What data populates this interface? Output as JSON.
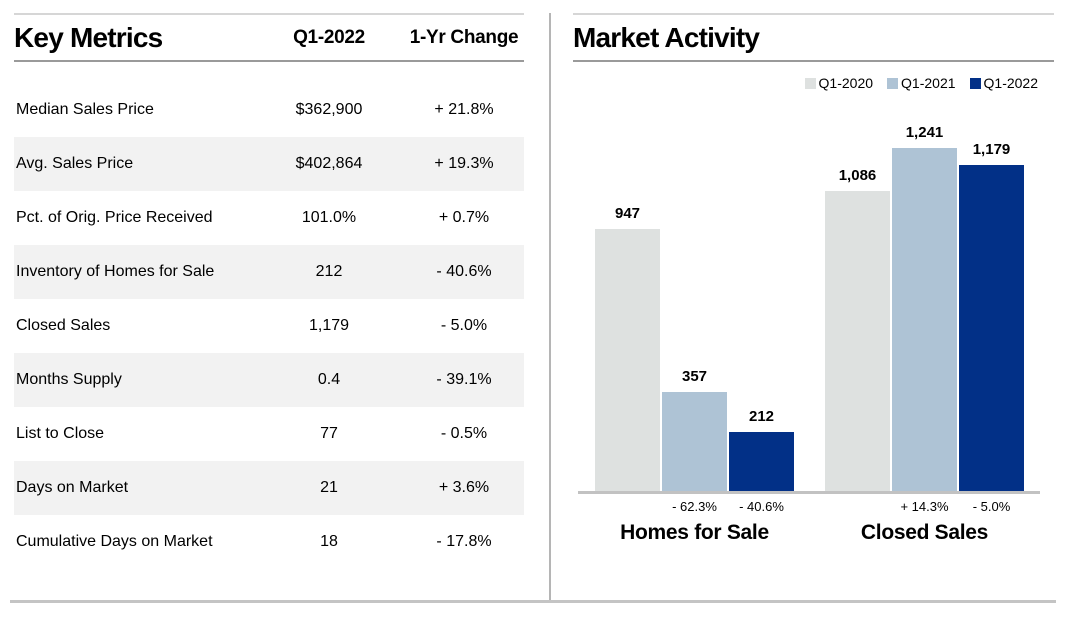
{
  "key_metrics": {
    "title": "Key Metrics",
    "columns": [
      "Q1-2022",
      "1-Yr Change"
    ],
    "rows": [
      {
        "label": "Median Sales Price",
        "value": "$362,900",
        "change": "+ 21.8%"
      },
      {
        "label": "Avg. Sales Price",
        "value": "$402,864",
        "change": "+ 19.3%"
      },
      {
        "label": "Pct. of Orig. Price Received",
        "value": "101.0%",
        "change": "+ 0.7%"
      },
      {
        "label": "Inventory of Homes for Sale",
        "value": "212",
        "change": "- 40.6%"
      },
      {
        "label": "Closed Sales",
        "value": "1,179",
        "change": "- 5.0%"
      },
      {
        "label": "Months Supply",
        "value": "0.4",
        "change": "- 39.1%"
      },
      {
        "label": "List to Close",
        "value": "77",
        "change": "- 0.5%"
      },
      {
        "label": "Days on Market",
        "value": "21",
        "change": "+ 3.6%"
      },
      {
        "label": "Cumulative Days on Market",
        "value": "18",
        "change": "- 17.8%"
      }
    ]
  },
  "market_activity": {
    "title": "Market Activity"
  },
  "chart_data": {
    "type": "bar",
    "title": "Market Activity",
    "categories": [
      "Homes for Sale",
      "Closed Sales"
    ],
    "series": [
      {
        "name": "Q1-2020",
        "color": "#dee1e0",
        "values": [
          947,
          1086
        ],
        "value_labels": [
          "947",
          "1,086"
        ],
        "change_labels": [
          "",
          ""
        ]
      },
      {
        "name": "Q1-2021",
        "color": "#aec3d5",
        "values": [
          357,
          1241
        ],
        "value_labels": [
          "357",
          "1,241"
        ],
        "change_labels": [
          "- 62.3%",
          "+ 14.3%"
        ]
      },
      {
        "name": "Q1-2022",
        "color": "#023087",
        "values": [
          212,
          1179
        ],
        "value_labels": [
          "212",
          "1,179"
        ],
        "change_labels": [
          "- 40.6%",
          "- 5.0%"
        ]
      }
    ],
    "ylim": [
      0,
      1241
    ],
    "grid": false,
    "legend_position": "top-right"
  },
  "colors": {
    "row_stripe": "#f2f2f2",
    "rule_light": "#d6d6d6",
    "rule_dark": "#9a9a9a",
    "axis": "#c2c2c2"
  }
}
